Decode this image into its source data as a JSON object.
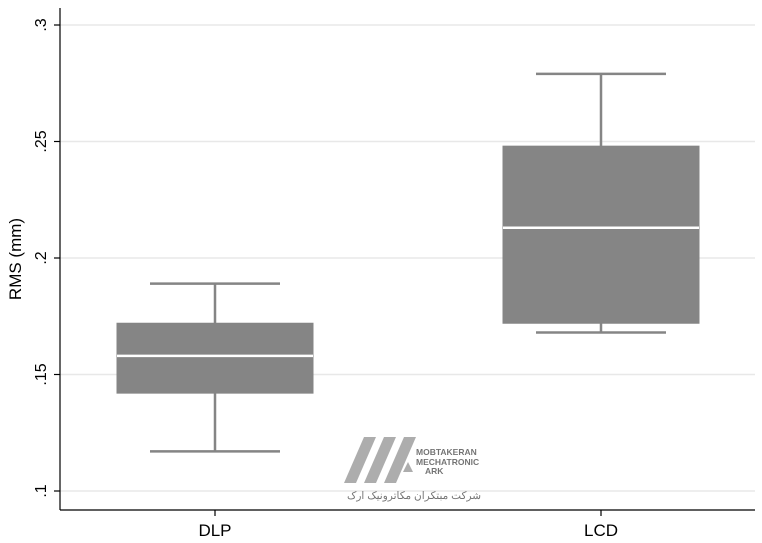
{
  "chart_data": {
    "type": "box",
    "ylabel": "RMS (mm)",
    "xlabel": "",
    "ylim": [
      0.1,
      0.3
    ],
    "yticks": [
      {
        "value": 0.1,
        "label": ".1"
      },
      {
        "value": 0.15,
        "label": ".15"
      },
      {
        "value": 0.2,
        "label": ".2"
      },
      {
        "value": 0.25,
        "label": ".25"
      },
      {
        "value": 0.3,
        "label": ".3"
      }
    ],
    "grid": true,
    "categories": [
      "DLP",
      "LCD"
    ],
    "boxes": [
      {
        "category": "DLP",
        "whisker_low": 0.117,
        "q1": 0.142,
        "median": 0.158,
        "q3": 0.172,
        "whisker_high": 0.189
      },
      {
        "category": "LCD",
        "whisker_low": 0.168,
        "q1": 0.172,
        "median": 0.213,
        "q3": 0.248,
        "whisker_high": 0.279
      }
    ],
    "box_color": "#858585",
    "median_color": "#ffffff",
    "whisker_color": "#858585",
    "grid_color": "#e8e8e8",
    "axis_color": "#000000"
  },
  "watermark": {
    "line1": "MOBTAKERAN",
    "line2": "MECHATRONIC",
    "line3": "ARK",
    "persian": "شرکت مبتکران مکاترونیک ارک"
  }
}
